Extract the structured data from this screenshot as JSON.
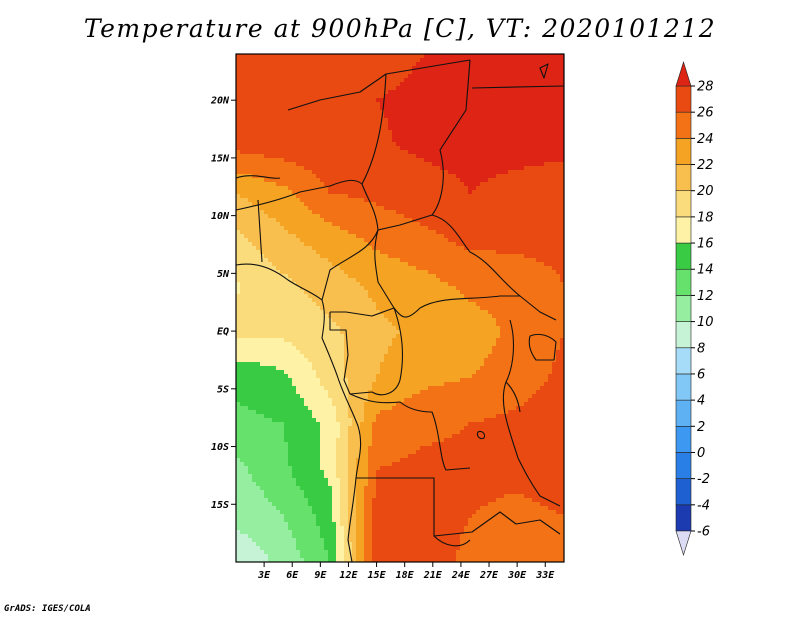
{
  "title": "Temperature at 900hPa [C], VT: 2020101212",
  "credit": "GrADS: IGES/COLA",
  "chart_data": {
    "type": "heatmap",
    "variable": "Temperature at 900hPa",
    "units": "C",
    "valid_time": "2020101212",
    "lon_range": [
      0,
      35
    ],
    "lat_range": [
      -20,
      24
    ],
    "x_ticks": [
      {
        "value": 3,
        "label": "3E"
      },
      {
        "value": 6,
        "label": "6E"
      },
      {
        "value": 9,
        "label": "9E"
      },
      {
        "value": 12,
        "label": "12E"
      },
      {
        "value": 15,
        "label": "15E"
      },
      {
        "value": 18,
        "label": "18E"
      },
      {
        "value": 21,
        "label": "21E"
      },
      {
        "value": 24,
        "label": "24E"
      },
      {
        "value": 27,
        "label": "27E"
      },
      {
        "value": 30,
        "label": "30E"
      },
      {
        "value": 33,
        "label": "33E"
      }
    ],
    "y_ticks": [
      {
        "value": 20,
        "label": "20N"
      },
      {
        "value": 15,
        "label": "15N"
      },
      {
        "value": 10,
        "label": "10N"
      },
      {
        "value": 5,
        "label": "5N"
      },
      {
        "value": 0,
        "label": "EQ"
      },
      {
        "value": -5,
        "label": "5S"
      },
      {
        "value": -10,
        "label": "10S"
      },
      {
        "value": -15,
        "label": "15S"
      }
    ],
    "colorbar": {
      "levels": [
        -6,
        -4,
        -2,
        0,
        2,
        4,
        6,
        8,
        10,
        12,
        14,
        16,
        18,
        20,
        22,
        24,
        26,
        28
      ],
      "labels": [
        "-6",
        "-4",
        "-2",
        "0",
        "2",
        "4",
        "6",
        "8",
        "10",
        "12",
        "14",
        "16",
        "18",
        "20",
        "22",
        "24",
        "26",
        "28"
      ],
      "colors": [
        "#1a0f6e",
        "#1c3bb0",
        "#1e5fd2",
        "#2a7fe6",
        "#3c98f0",
        "#5eb2f4",
        "#82c8f6",
        "#a6dcf8",
        "#c6f2d6",
        "#96eea0",
        "#66e26c",
        "#3acb44",
        "#fdf2a6",
        "#fbdc7c",
        "#f8be4e",
        "#f5a322",
        "#f47216",
        "#e84a12",
        "#de2414"
      ],
      "under_color": "#dcdcf4"
    },
    "temperature_field": {
      "lats": [
        24,
        20,
        16,
        12,
        8,
        4,
        0,
        -4,
        -8,
        -12,
        -16,
        -20
      ],
      "lons": [
        0,
        5,
        10,
        15,
        20,
        25,
        30,
        35
      ],
      "values": [
        [
          27,
          26.5,
          27,
          27.5,
          28,
          28,
          28.3,
          28.5
        ],
        [
          27,
          27,
          27.5,
          28,
          28.3,
          28.5,
          28.5,
          28.5
        ],
        [
          26.5,
          27,
          27.3,
          27.8,
          28.3,
          28.5,
          28.5,
          28.3
        ],
        [
          22,
          23.5,
          26,
          26.5,
          27.3,
          28,
          27.5,
          27.3
        ],
        [
          19.5,
          21.5,
          23,
          24.5,
          25.5,
          26.5,
          26.5,
          26.5
        ],
        [
          17.8,
          19.5,
          21,
          22.5,
          23.3,
          24.5,
          25,
          26
        ],
        [
          18.5,
          18.5,
          19.5,
          21.5,
          22.5,
          23,
          24.5,
          26
        ],
        [
          14.5,
          15.5,
          19,
          22,
          23.5,
          24,
          25,
          26.5
        ],
        [
          13.5,
          14,
          16.5,
          24.5,
          25.5,
          26,
          26.5,
          27
        ],
        [
          11.5,
          13.5,
          16.5,
          26,
          26.5,
          26.5,
          26.5,
          27
        ],
        [
          10.5,
          12,
          15,
          27,
          27,
          26,
          25.5,
          26
        ],
        [
          8.5,
          10.5,
          14,
          27.5,
          27,
          25.5,
          25,
          24.5
        ]
      ]
    }
  }
}
